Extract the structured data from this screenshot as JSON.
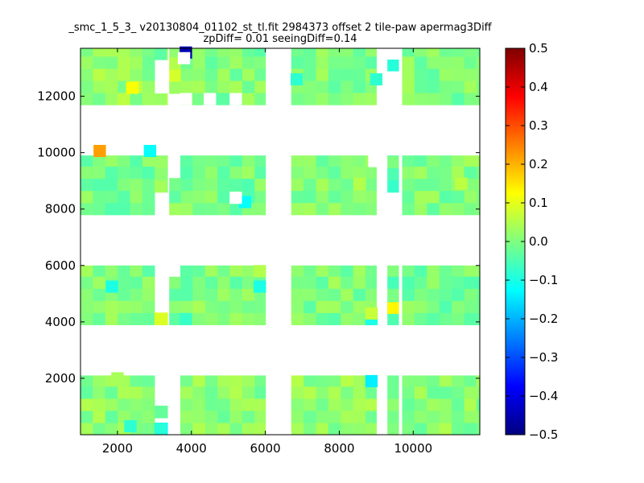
{
  "chart_data": {
    "type": "heatmap",
    "title_lines": [
      "_smc_1_5_3_ v20130804_01102_st_tl.fit 2984373 offset 2 tile-paw apermag3Diff",
      "zpDiff= 0.01 seeingDiff=0.14"
    ],
    "xlabel": "",
    "ylabel": "",
    "xlim": [
      1000,
      11800
    ],
    "ylim": [
      0,
      13700
    ],
    "x_ticks": [
      2000,
      4000,
      6000,
      8000,
      10000
    ],
    "y_ticks": [
      2000,
      4000,
      6000,
      8000,
      10000,
      12000
    ],
    "colorbar": {
      "colormap": "jet",
      "range": [
        -0.5,
        0.5
      ],
      "ticks": [
        0.5,
        0.4,
        0.3,
        0.2,
        0.1,
        0.0,
        -0.1,
        -0.2,
        -0.3,
        -0.4,
        -0.5
      ],
      "tick_labels": [
        "0.5",
        "0.4",
        "0.3",
        "0.2",
        "0.1",
        "0.0",
        "−0.1",
        "−0.2",
        "−0.3",
        "−0.4",
        "−0.5"
      ]
    },
    "pixel_size": [
      335,
      430
    ],
    "base_value": 0.0,
    "detector_blocks": [
      {
        "x": [
          1000,
          3000
        ],
        "y": [
          0,
          2100
        ],
        "value": 0.01
      },
      {
        "x": [
          3700,
          6000
        ],
        "y": [
          0,
          2100
        ],
        "value": 0.01
      },
      {
        "x": [
          6700,
          9000
        ],
        "y": [
          0,
          2100
        ],
        "value": 0.02
      },
      {
        "x": [
          9700,
          11800
        ],
        "y": [
          0,
          2100
        ],
        "value": 0.01
      },
      {
        "x": [
          1000,
          3000
        ],
        "y": [
          3900,
          6000
        ],
        "value": 0.0
      },
      {
        "x": [
          3700,
          6000
        ],
        "y": [
          3900,
          6000
        ],
        "value": 0.0
      },
      {
        "x": [
          6700,
          9000
        ],
        "y": [
          3900,
          6000
        ],
        "value": 0.0
      },
      {
        "x": [
          9700,
          11800
        ],
        "y": [
          3900,
          6000
        ],
        "value": -0.01
      },
      {
        "x": [
          1000,
          3000
        ],
        "y": [
          7800,
          9900
        ],
        "value": -0.01
      },
      {
        "x": [
          3700,
          6000
        ],
        "y": [
          7800,
          9900
        ],
        "value": -0.01
      },
      {
        "x": [
          6700,
          9000
        ],
        "y": [
          7800,
          9900
        ],
        "value": 0.0
      },
      {
        "x": [
          9700,
          11800
        ],
        "y": [
          7800,
          9900
        ],
        "value": 0.0
      },
      {
        "x": [
          1000,
          3000
        ],
        "y": [
          11700,
          13700
        ],
        "value": 0.02
      },
      {
        "x": [
          3700,
          6000
        ],
        "y": [
          11700,
          13700
        ],
        "value": 0.0
      },
      {
        "x": [
          6700,
          9000
        ],
        "y": [
          11700,
          13700
        ],
        "value": 0.0
      },
      {
        "x": [
          9700,
          11800
        ],
        "y": [
          11700,
          13700
        ],
        "value": 0.0
      }
    ],
    "extra_cells": [
      {
        "x": [
          3000,
          3350
        ],
        "y": [
          0,
          430
        ],
        "value": -0.1
      },
      {
        "x": [
          3000,
          3350
        ],
        "y": [
          600,
          1030
        ],
        "value": 0.0
      },
      {
        "x": [
          3000,
          3350
        ],
        "y": [
          3900,
          4330
        ],
        "value": 0.08
      },
      {
        "x": [
          3000,
          3350
        ],
        "y": [
          8600,
          9900
        ],
        "value": 0.03
      },
      {
        "x": [
          3000,
          3350
        ],
        "y": [
          11700,
          12100
        ],
        "value": 0.05
      },
      {
        "x": [
          3000,
          3350
        ],
        "y": [
          13300,
          13700
        ],
        "value": 0.0
      },
      {
        "x": [
          3400,
          3700
        ],
        "y": [
          3900,
          5600
        ],
        "value": 0.0
      },
      {
        "x": [
          3400,
          3700
        ],
        "y": [
          7800,
          9100
        ],
        "value": 0.0
      },
      {
        "x": [
          3400,
          3700
        ],
        "y": [
          12100,
          13700
        ],
        "value": 0.05
      },
      {
        "x": [
          9300,
          9600
        ],
        "y": [
          0,
          2100
        ],
        "value": -0.02
      },
      {
        "x": [
          9300,
          9600
        ],
        "y": [
          3900,
          6000
        ],
        "value": -0.03
      },
      {
        "x": [
          9300,
          9600
        ],
        "y": [
          4300,
          4700
        ],
        "value": 0.1
      },
      {
        "x": [
          9300,
          9600
        ],
        "y": [
          8600,
          9900
        ],
        "value": -0.04
      },
      {
        "x": [
          9300,
          9600
        ],
        "y": [
          12900,
          13300
        ],
        "value": -0.08
      }
    ],
    "outliers": [
      {
        "x": 3850,
        "y": 13550,
        "value": -0.45
      },
      {
        "x": 1520,
        "y": 10060,
        "value": 0.22
      },
      {
        "x": 2880,
        "y": 10060,
        "value": -0.12
      },
      {
        "x": 8870,
        "y": 1900,
        "value": -0.14
      },
      {
        "x": 2400,
        "y": 12300,
        "value": 0.12
      },
      {
        "x": 1850,
        "y": 5250,
        "value": -0.1
      },
      {
        "x": 5450,
        "y": 8250,
        "value": -0.12
      },
      {
        "x": 5850,
        "y": 5250,
        "value": -0.1
      },
      {
        "x": 8870,
        "y": 4100,
        "value": -0.1
      },
      {
        "x": 9000,
        "y": 12600,
        "value": -0.08
      },
      {
        "x": 6850,
        "y": 12600,
        "value": -0.08
      },
      {
        "x": 2350,
        "y": 300,
        "value": -0.08
      },
      {
        "x": 3850,
        "y": 4100,
        "value": -0.07
      },
      {
        "x": 8550,
        "y": 8900,
        "value": 0.05
      },
      {
        "x": 11300,
        "y": 8900,
        "value": 0.06
      },
      {
        "x": 5850,
        "y": 5800,
        "value": 0.05
      },
      {
        "x": 8870,
        "y": 4300,
        "value": 0.07
      },
      {
        "x": 2000,
        "y": 2000,
        "value": 0.04
      }
    ],
    "missing_cells": [
      {
        "x": 3800,
        "y": 13350
      },
      {
        "x": 4500,
        "y": 11900
      },
      {
        "x": 5200,
        "y": 8400
      },
      {
        "x": 5200,
        "y": 11900
      },
      {
        "x": 3850,
        "y": 11900
      },
      {
        "x": 8950,
        "y": 9700
      }
    ]
  }
}
